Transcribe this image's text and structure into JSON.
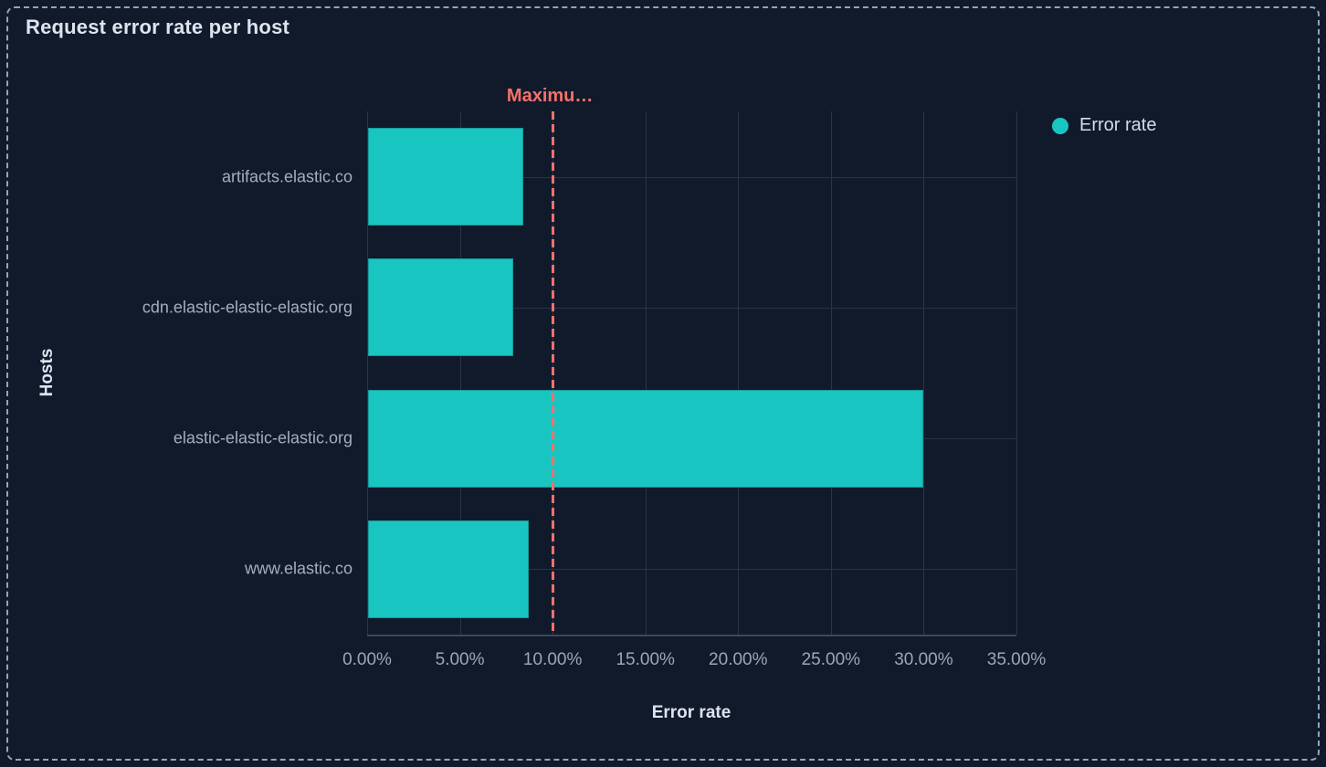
{
  "panel": {
    "title": "Request error rate per host"
  },
  "legend": {
    "items": [
      {
        "label": "Error rate",
        "color": "#18c5c1"
      }
    ]
  },
  "chart_data": {
    "type": "bar",
    "orientation": "horizontal",
    "title": "Request error rate per host",
    "categories": [
      "artifacts.elastic.co",
      "cdn.elastic-elastic-elastic.org",
      "elastic-elastic-elastic.org",
      "www.elastic.co"
    ],
    "series": [
      {
        "name": "Error rate",
        "color": "#18c5c1",
        "unit": "%",
        "values": [
          8.4,
          7.9,
          30.0,
          8.7
        ]
      }
    ],
    "xlabel": "Error rate",
    "ylabel": "Hosts",
    "xlim": [
      0,
      35
    ],
    "x_tick_values": [
      0,
      5,
      10,
      15,
      20,
      25,
      30,
      35
    ],
    "x_tick_labels": [
      "0.00%",
      "5.00%",
      "10.00%",
      "15.00%",
      "20.00%",
      "25.00%",
      "30.00%",
      "35.00%"
    ],
    "grid": true,
    "legend_position": "top-right",
    "threshold": {
      "value": 10,
      "label": "Maximu…",
      "color": "#f8716a",
      "style": "dashed"
    }
  },
  "colors": {
    "background": "#101a2a",
    "panel_border": "#93a4bd",
    "bar": "#18c5c1",
    "threshold": "#f8716a",
    "grid": "#2a3449",
    "axis_line": "#3c4859",
    "title_text": "#dde4ef",
    "tick_text": "#9aa6ba",
    "category_text": "#a4aec1",
    "legend_text": "#d5dce8"
  }
}
